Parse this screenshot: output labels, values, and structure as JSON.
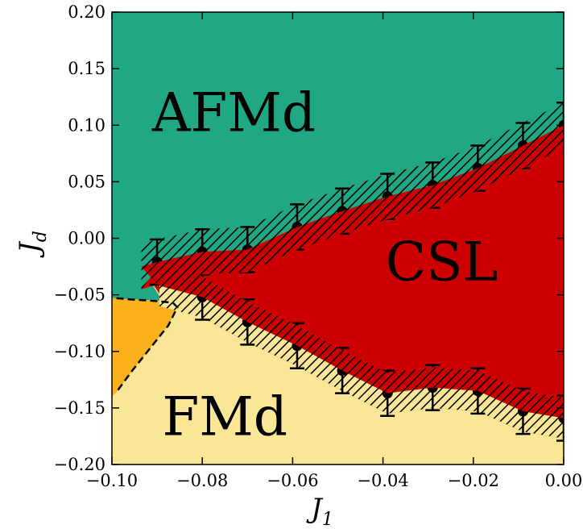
{
  "chart_data": {
    "type": "phase-diagram",
    "xlabel": {
      "base": "J",
      "sub": "1"
    },
    "ylabel": {
      "base": "J",
      "sub": "d"
    },
    "xlim": [
      -0.1,
      0.0
    ],
    "ylim": [
      -0.2,
      0.2
    ],
    "x_ticks": [
      -0.1,
      -0.08,
      -0.06,
      -0.04,
      -0.02,
      0.0
    ],
    "x_tick_labels": [
      "−0.10",
      "−0.08",
      "−0.06",
      "−0.04",
      "−0.02",
      "0.00"
    ],
    "y_ticks": [
      0.2,
      0.15,
      0.1,
      0.05,
      0.0,
      -0.05,
      -0.1,
      -0.15,
      -0.2
    ],
    "y_tick_labels": [
      "0.20",
      "0.15",
      "0.10",
      "0.05",
      "0.00",
      "−0.05",
      "−0.10",
      "−0.15",
      "−0.20"
    ],
    "regions": [
      {
        "name": "AFMd",
        "color": "#20a884",
        "label_at": [
          -0.073,
          0.112
        ]
      },
      {
        "name": "CSL",
        "color": "#cc0000",
        "label_at": [
          -0.027,
          -0.02
        ]
      },
      {
        "name": "FMd",
        "color": "#f9e697",
        "label_at": [
          -0.075,
          -0.157
        ]
      },
      {
        "name": "",
        "color": "#fbb11b"
      }
    ],
    "boundary_points": {
      "x": [
        -0.09,
        -0.08,
        -0.07,
        -0.059,
        -0.049,
        -0.039,
        -0.029,
        -0.019,
        -0.009,
        0.0
      ],
      "upper": {
        "y": [
          -0.021,
          -0.012,
          -0.01,
          0.01,
          0.024,
          0.037,
          0.047,
          0.062,
          0.082,
          0.1
        ],
        "err": [
          0.02,
          0.02,
          0.02,
          0.02,
          0.02,
          0.02,
          0.02,
          0.02,
          0.02,
          0.02
        ]
      },
      "lower_x": [
        -0.08,
        -0.07,
        -0.059,
        -0.049,
        -0.039,
        -0.029,
        -0.019,
        -0.009,
        0.0
      ],
      "lower": {
        "y": [
          -0.052,
          -0.074,
          -0.095,
          -0.117,
          -0.137,
          -0.132,
          -0.135,
          -0.153,
          -0.159
        ],
        "err": [
          0.02,
          0.02,
          0.02,
          0.02,
          0.02,
          0.02,
          0.02,
          0.02,
          0.02
        ]
      }
    },
    "orange_boundary": {
      "x": [
        -0.1,
        -0.099,
        -0.096,
        -0.092,
        -0.089,
        -0.0865,
        -0.0855,
        -0.0875,
        -0.0915,
        -0.0955,
        -0.099,
        -0.1
      ],
      "y": [
        -0.053,
        -0.053,
        -0.054,
        -0.055,
        -0.056,
        -0.057,
        -0.061,
        -0.077,
        -0.097,
        -0.117,
        -0.136,
        -0.14
      ]
    },
    "colors": {
      "band_edge": "#000000",
      "points": "#000000"
    }
  }
}
